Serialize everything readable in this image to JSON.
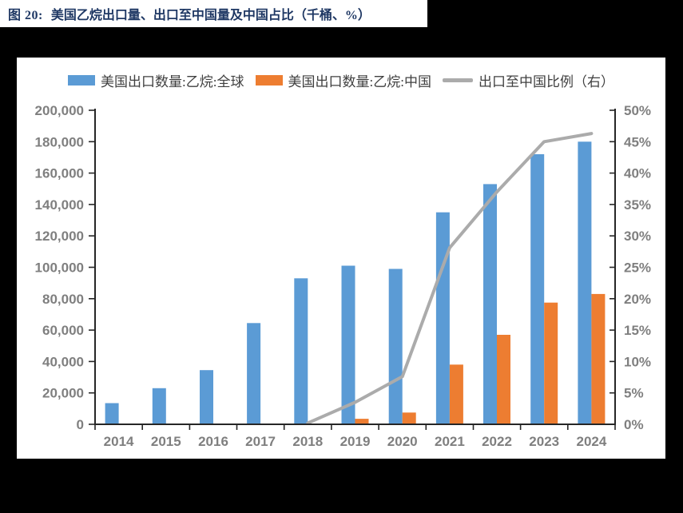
{
  "page": {
    "background_color": "#000000",
    "title_strip_color": "#ffffff",
    "card_color": "#ffffff"
  },
  "title": {
    "figure_label": "图 20:",
    "text": "美国乙烷出口量、出口至中国量及中国占比（千桶、%）",
    "color": "#1F3864"
  },
  "chart_data": {
    "type": "bar",
    "subtype": "bar+line combo, dual axis",
    "title": "美国乙烷出口量、出口至中国量及中国占比（千桶、%）",
    "categories": [
      "2014",
      "2015",
      "2016",
      "2017",
      "2018",
      "2019",
      "2020",
      "2021",
      "2022",
      "2023",
      "2024"
    ],
    "series": [
      {
        "name": "美国出口数量:乙烷:全球",
        "type": "bar",
        "axis": "left",
        "color": "#5B9BD5",
        "values": [
          13500,
          23000,
          34500,
          64500,
          93000,
          101000,
          99000,
          135000,
          153000,
          172000,
          180000
        ]
      },
      {
        "name": "美国出口数量:乙烷:中国",
        "type": "bar",
        "axis": "left",
        "color": "#ED7D31",
        "values": [
          0,
          0,
          0,
          0,
          0,
          3500,
          7500,
          38000,
          57000,
          77500,
          83000
        ]
      },
      {
        "name": "出口至中国比例（右）",
        "type": "line",
        "axis": "right",
        "color": "#ABABAB",
        "values": [
          null,
          null,
          null,
          null,
          0.2,
          3.5,
          7.6,
          28.1,
          37.0,
          45.0,
          46.3
        ]
      }
    ],
    "left_axis": {
      "min": 0,
      "max": 200000,
      "step": 20000,
      "labels": [
        "0",
        "20,000",
        "40,000",
        "60,000",
        "80,000",
        "100,000",
        "120,000",
        "140,000",
        "160,000",
        "180,000",
        "200,000"
      ]
    },
    "right_axis": {
      "min": 0,
      "max": 50,
      "step": 5,
      "labels": [
        "0%",
        "5%",
        "10%",
        "15%",
        "20%",
        "25%",
        "30%",
        "35%",
        "40%",
        "45%",
        "50%"
      ]
    },
    "legend_position": "top",
    "grid": false,
    "axis_line_color": "#262626",
    "tick_label_color": "#7F7F7F"
  }
}
